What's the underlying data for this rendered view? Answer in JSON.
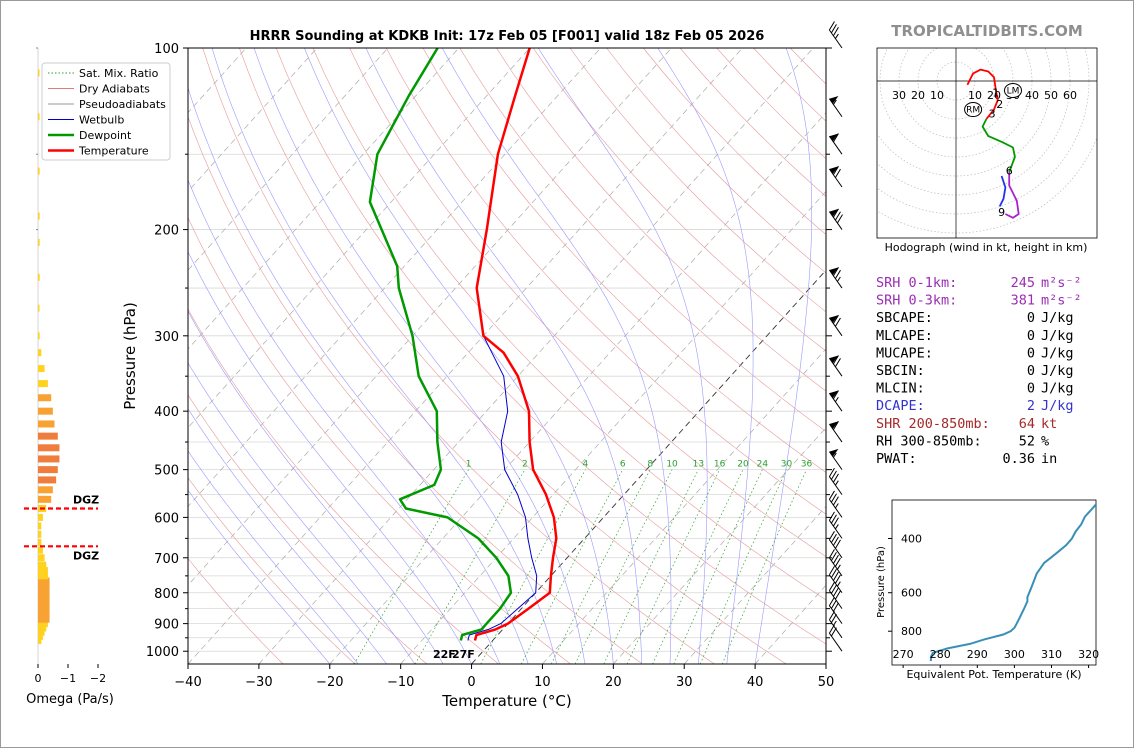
{
  "chart_data": [
    {
      "type": "line",
      "title": "HRRR Sounding at KDKB Init: 17z Feb 05 [F001] valid 18z Feb 05 2026",
      "xlabel": "Temperature (°C)",
      "ylabel": "Pressure (hPa)",
      "xlim": [
        -40,
        50
      ],
      "ylim": [
        1050,
        100
      ],
      "y_scale": "log",
      "skew": true,
      "x_ticks": [
        -40,
        -30,
        -20,
        -10,
        0,
        10,
        20,
        30,
        40,
        50
      ],
      "x_tick_labels": [
        "−40",
        "−30",
        "−20",
        "−10",
        "0",
        "10",
        "20",
        "30",
        "40",
        "50"
      ],
      "y_ticks": [
        100,
        200,
        300,
        400,
        500,
        600,
        700,
        800,
        900,
        1000
      ],
      "legend": {
        "position": "top-left",
        "entries": [
          {
            "label": "Sat. Mix. Ratio",
            "color": "#2ca02c",
            "style": "dotted"
          },
          {
            "label": "Dry Adiabats",
            "color": "#e07b7b",
            "style": "solid"
          },
          {
            "label": "Pseudoadiabats",
            "color": "#9a9a9a",
            "style": "solid"
          },
          {
            "label": "Wetbulb",
            "color": "#0000cc",
            "style": "solid"
          },
          {
            "label": "Dewpoint",
            "color": "#009900",
            "style": "solid"
          },
          {
            "label": "Temperature",
            "color": "#ff0000",
            "style": "solid"
          }
        ]
      },
      "mixing_ratio_labels": [
        "1",
        "2",
        "4",
        "6",
        "8",
        "10",
        "13",
        "16",
        "20",
        "24",
        "30",
        "36"
      ],
      "series": [
        {
          "name": "Temperature",
          "color": "#ff0000",
          "p": [
            960,
            940,
            920,
            900,
            850,
            800,
            750,
            700,
            650,
            600,
            550,
            500,
            450,
            400,
            350,
            320,
            300,
            250,
            200,
            150,
            120,
            100
          ],
          "t": [
            -2.5,
            -3,
            -1,
            0,
            1,
            2,
            0,
            -2,
            -4,
            -7,
            -11,
            -16,
            -20,
            -24,
            -30,
            -35,
            -40,
            -47,
            -53,
            -61,
            -66,
            -70
          ]
        },
        {
          "name": "Dewpoint",
          "color": "#009900",
          "p": [
            960,
            940,
            920,
            900,
            850,
            800,
            750,
            700,
            650,
            600,
            580,
            560,
            530,
            500,
            450,
            400,
            350,
            300,
            250,
            230,
            180,
            150,
            120,
            100
          ],
          "t": [
            -4.5,
            -5,
            -3,
            -3,
            -3,
            -3.5,
            -6,
            -10,
            -15,
            -22,
            -29,
            -31,
            -28,
            -29,
            -33,
            -37,
            -44,
            -50,
            -58,
            -61,
            -73,
            -78,
            -81,
            -83
          ]
        },
        {
          "name": "Wetbulb",
          "color": "#0000cc",
          "p": [
            960,
            940,
            920,
            900,
            850,
            800,
            750,
            700,
            650,
            600,
            550,
            500,
            450,
            400,
            350,
            300,
            250,
            200,
            150,
            120,
            100
          ],
          "t": [
            -3.5,
            -4,
            -2,
            -1,
            -0.5,
            0,
            -2,
            -5,
            -8,
            -11,
            -15,
            -20,
            -24,
            -27,
            -32,
            -40,
            -47,
            -53,
            -61,
            -66,
            -70
          ]
        }
      ],
      "surface_labels": {
        "dewpoint": "22F",
        "temperature": "27F",
        "dewpoint_color": "#009900",
        "temperature_color": "#ff0000"
      },
      "wind_barbs_kt": [
        {
          "p": 1000,
          "speed": 20
        },
        {
          "p": 950,
          "speed": 25
        },
        {
          "p": 900,
          "speed": 30
        },
        {
          "p": 850,
          "speed": 40
        },
        {
          "p": 800,
          "speed": 45
        },
        {
          "p": 750,
          "speed": 45
        },
        {
          "p": 700,
          "speed": 40
        },
        {
          "p": 650,
          "speed": 35
        },
        {
          "p": 600,
          "speed": 35
        },
        {
          "p": 550,
          "speed": 35
        },
        {
          "p": 500,
          "speed": 55
        },
        {
          "p": 450,
          "speed": 60
        },
        {
          "p": 400,
          "speed": 65
        },
        {
          "p": 350,
          "speed": 70
        },
        {
          "p": 300,
          "speed": 70
        },
        {
          "p": 250,
          "speed": 75
        },
        {
          "p": 200,
          "speed": 80
        },
        {
          "p": 170,
          "speed": 70
        },
        {
          "p": 150,
          "speed": 60
        },
        {
          "p": 130,
          "speed": 55
        },
        {
          "p": 100,
          "speed": 35
        }
      ]
    },
    {
      "type": "bar",
      "xlabel": "Omega (Pa/s)",
      "x_tick_labels": [
        "0",
        "−1",
        "−2"
      ],
      "xlim": [
        0,
        -2
      ],
      "dgz_label": "DGZ",
      "dgz_levels": [
        580,
        670
      ],
      "levels": [
        960,
        945,
        930,
        915,
        900,
        885,
        870,
        855,
        840,
        825,
        810,
        795,
        780,
        765,
        750,
        735,
        720,
        700,
        680,
        660,
        640,
        620,
        600,
        580,
        560,
        540,
        520,
        500,
        480,
        460,
        440,
        420,
        400,
        380,
        360,
        340,
        320,
        300,
        270,
        240,
        210,
        190,
        160,
        130,
        110
      ],
      "values": [
        -0.1,
        -0.15,
        -0.2,
        -0.25,
        -0.3,
        -0.35,
        -0.35,
        -0.35,
        -0.35,
        -0.35,
        -0.35,
        -0.35,
        -0.35,
        -0.35,
        -0.3,
        -0.3,
        -0.25,
        -0.2,
        -0.15,
        -0.1,
        -0.1,
        -0.1,
        -0.15,
        -0.25,
        -0.4,
        -0.45,
        -0.55,
        -0.6,
        -0.65,
        -0.65,
        -0.6,
        -0.5,
        -0.45,
        -0.4,
        -0.3,
        -0.2,
        -0.1,
        -0.05,
        -0.02,
        -0.05,
        -0.05,
        -0.05,
        -0.05,
        -0.02,
        -0.02
      ],
      "colors": {
        "low": "#ffd21f",
        "mid": "#f7a233",
        "high": "#ef7d3b"
      }
    },
    {
      "type": "line",
      "title": "Hodograph (wind in kt, height in km)",
      "ring_labels": [
        "30",
        "20",
        "10",
        "10",
        "20",
        "30",
        "40",
        "50",
        "60"
      ],
      "height_labels": [
        "1",
        "2",
        "3",
        "6",
        "9"
      ],
      "markers": [
        "RM",
        "LM"
      ],
      "segments": [
        {
          "range": "0-1 km",
          "color": "#ff0000",
          "u": [
            6,
            9,
            13,
            17,
            20,
            21
          ],
          "v": [
            -2,
            4,
            6,
            5,
            2,
            -5
          ]
        },
        {
          "range": "1-3 km",
          "color": "#ff0000",
          "u": [
            21,
            22,
            20,
            16
          ],
          "v": [
            -5,
            -10,
            -15,
            -20
          ]
        },
        {
          "range": "3-6 km",
          "color": "#009900",
          "u": [
            16,
            14,
            17,
            24,
            30,
            31,
            28
          ],
          "v": [
            -20,
            -24,
            -29,
            -32,
            -35,
            -40,
            -48
          ]
        },
        {
          "range": "6-9 km",
          "color": "#aa22cc",
          "u": [
            28,
            28,
            32,
            33,
            30,
            26
          ],
          "v": [
            -48,
            -55,
            -63,
            -70,
            -72,
            -70
          ]
        },
        {
          "range": "9+ km",
          "color": "#2233ee",
          "u": [
            24,
            26,
            25,
            23
          ],
          "v": [
            -50,
            -56,
            -62,
            -66
          ]
        }
      ],
      "height_points": [
        [
          21,
          -6
        ],
        [
          23,
          -12
        ],
        [
          19,
          -17
        ],
        [
          28,
          -47
        ],
        [
          24,
          -69
        ]
      ],
      "marker_points": {
        "RM": [
          9,
          -15
        ],
        "LM": [
          30,
          -5
        ]
      }
    },
    {
      "type": "line",
      "xlabel": "Equivalent Pot. Temperature (K)",
      "ylabel": "Pressure (hPa)",
      "xlim": [
        267,
        322
      ],
      "ylim": [
        1000,
        300
      ],
      "x_ticks": [
        270,
        280,
        290,
        300,
        310,
        320
      ],
      "y_ticks": [
        400,
        600,
        800
      ],
      "color": "#3a8fb7",
      "p": [
        1000,
        970,
        940,
        910,
        880,
        850,
        820,
        800,
        780,
        760,
        740,
        720,
        700,
        680,
        660,
        640,
        620,
        600,
        580,
        560,
        540,
        520,
        500,
        480,
        460,
        440,
        420,
        400,
        380,
        360,
        340,
        320,
        310
      ],
      "theta_e": [
        277.5,
        277.5,
        278,
        282,
        288,
        292,
        297,
        299,
        300,
        300.5,
        301,
        301.5,
        302,
        302.5,
        303,
        303.5,
        303.5,
        304,
        304.5,
        305,
        305.5,
        306,
        307,
        308,
        310,
        312,
        314,
        315.5,
        316.5,
        318,
        319,
        321,
        322
      ]
    }
  ],
  "brand": "TROPICALTIDBITS.COM",
  "parameters": [
    {
      "label": "SRH 0-1km:",
      "value": "245",
      "unit": "m²s⁻²",
      "color": "#9b2db5"
    },
    {
      "label": "SRH 0-3km:",
      "value": "381",
      "unit": "m²s⁻²",
      "color": "#9b2db5"
    },
    {
      "label": "SBCAPE:",
      "value": "0",
      "unit": "J/kg",
      "color": "#000000"
    },
    {
      "label": "MLCAPE:",
      "value": "0",
      "unit": "J/kg",
      "color": "#000000"
    },
    {
      "label": "MUCAPE:",
      "value": "0",
      "unit": "J/kg",
      "color": "#000000"
    },
    {
      "label": "SBCIN:",
      "value": "0",
      "unit": "J/kg",
      "color": "#000000"
    },
    {
      "label": "MLCIN:",
      "value": "0",
      "unit": "J/kg",
      "color": "#000000"
    },
    {
      "label": "DCAPE:",
      "value": "2",
      "unit": "J/kg",
      "color": "#3333cc"
    },
    {
      "label": "SHR 200-850mb:",
      "value": "64",
      "unit": "kt",
      "color": "#a52a2a"
    },
    {
      "label": "RH 300-850mb:",
      "value": "52",
      "unit": "%",
      "color": "#000000"
    },
    {
      "label": "PWAT:",
      "value": "0.36",
      "unit": "in",
      "color": "#000000"
    }
  ]
}
